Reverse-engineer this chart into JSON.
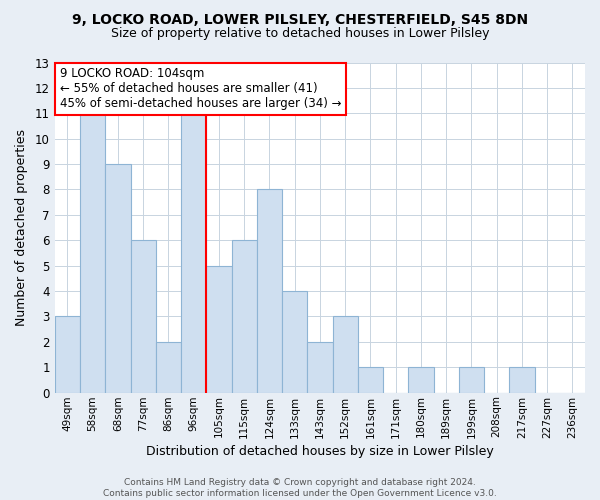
{
  "title": "9, LOCKO ROAD, LOWER PILSLEY, CHESTERFIELD, S45 8DN",
  "subtitle": "Size of property relative to detached houses in Lower Pilsley",
  "xlabel": "Distribution of detached houses by size in Lower Pilsley",
  "ylabel": "Number of detached properties",
  "footer_lines": [
    "Contains HM Land Registry data © Crown copyright and database right 2024.",
    "Contains public sector information licensed under the Open Government Licence v3.0."
  ],
  "bin_labels": [
    "49sqm",
    "58sqm",
    "68sqm",
    "77sqm",
    "86sqm",
    "96sqm",
    "105sqm",
    "115sqm",
    "124sqm",
    "133sqm",
    "143sqm",
    "152sqm",
    "161sqm",
    "171sqm",
    "180sqm",
    "189sqm",
    "199sqm",
    "208sqm",
    "217sqm",
    "227sqm",
    "236sqm"
  ],
  "bar_values": [
    3,
    11,
    9,
    6,
    2,
    11,
    5,
    6,
    8,
    4,
    2,
    3,
    1,
    0,
    1,
    0,
    1,
    0,
    1,
    0,
    0
  ],
  "bar_color": "#cfdff0",
  "bar_edge_color": "#8eb4d4",
  "subject_line_index": 6,
  "subject_line_color": "red",
  "annotation_text": "9 LOCKO ROAD: 104sqm\n← 55% of detached houses are smaller (41)\n45% of semi-detached houses are larger (34) →",
  "annotation_box_facecolor": "white",
  "annotation_box_edgecolor": "red",
  "ylim": [
    0,
    13
  ],
  "yticks": [
    0,
    1,
    2,
    3,
    4,
    5,
    6,
    7,
    8,
    9,
    10,
    11,
    12,
    13
  ],
  "background_color": "#e8eef5",
  "plot_background": "white",
  "grid_color": "#c8d4e0",
  "title_fontsize": 10,
  "subtitle_fontsize": 9
}
